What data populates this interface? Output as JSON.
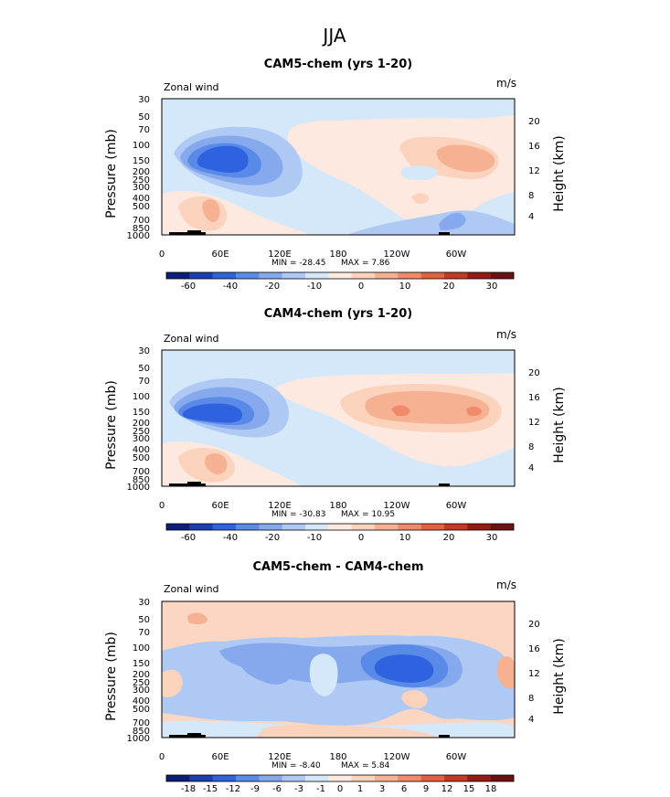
{
  "figure_title": "JJA",
  "chart_data": [
    {
      "type": "heatmap",
      "title": "CAM5-chem (yrs 1-20)",
      "left_label": "Zonal wind",
      "right_label": "m/s",
      "ylabel": "Pressure (mb)",
      "ylabel_right": "Height (km)",
      "xticks": [
        "0",
        "60E",
        "120E",
        "180",
        "120W",
        "60W"
      ],
      "yticks": [
        "30",
        "50",
        "70",
        "100",
        "150",
        "200",
        "250",
        "300",
        "400",
        "500",
        "700",
        "850",
        "1000"
      ],
      "yticks_right": [
        "20",
        "16",
        "12",
        "8",
        "4"
      ],
      "min_label": "MIN = -28.45",
      "max_label": "MAX = 7.86",
      "colorbar_labels": [
        "-60",
        "-40",
        "-20",
        "-10",
        "0",
        "10",
        "20",
        "30"
      ]
    },
    {
      "type": "heatmap",
      "title": "CAM4-chem (yrs 1-20)",
      "left_label": "Zonal wind",
      "right_label": "m/s",
      "ylabel": "Pressure (mb)",
      "ylabel_right": "Height (km)",
      "xticks": [
        "0",
        "60E",
        "120E",
        "180",
        "120W",
        "60W"
      ],
      "yticks": [
        "30",
        "50",
        "70",
        "100",
        "150",
        "200",
        "250",
        "300",
        "400",
        "500",
        "700",
        "850",
        "1000"
      ],
      "yticks_right": [
        "20",
        "16",
        "12",
        "8",
        "4"
      ],
      "min_label": "MIN = -30.83",
      "max_label": "MAX = 10.95",
      "colorbar_labels": [
        "-60",
        "-40",
        "-20",
        "-10",
        "0",
        "10",
        "20",
        "30"
      ]
    },
    {
      "type": "heatmap",
      "title": "CAM5-chem - CAM4-chem",
      "left_label": "Zonal wind",
      "right_label": "m/s",
      "ylabel": "Pressure (mb)",
      "ylabel_right": "Height (km)",
      "xticks": [
        "0",
        "60E",
        "120E",
        "180",
        "120W",
        "60W"
      ],
      "yticks": [
        "30",
        "50",
        "70",
        "100",
        "150",
        "200",
        "250",
        "300",
        "400",
        "500",
        "700",
        "850",
        "1000"
      ],
      "yticks_right": [
        "20",
        "16",
        "12",
        "8",
        "4"
      ],
      "min_label": "MIN = -8.40",
      "max_label": "MAX = 5.84",
      "colorbar_labels": [
        "-18",
        "-15",
        "-12",
        "-9",
        "-6",
        "-3",
        "-1",
        "0",
        "1",
        "3",
        "6",
        "9",
        "12",
        "15",
        "18"
      ]
    }
  ],
  "colors": {
    "bg_base": "#d4e8fa",
    "bg_diff": "#fbd6c2",
    "colorbar": [
      "#0c1e78",
      "#1b3fb0",
      "#2f62df",
      "#5a8ae8",
      "#86a9ee",
      "#aec9f3",
      "#d4e8fa",
      "#fde9df",
      "#fbd2bb",
      "#f6b092",
      "#f08a6a",
      "#e55f41",
      "#c73724",
      "#951b12",
      "#6d1010"
    ]
  }
}
